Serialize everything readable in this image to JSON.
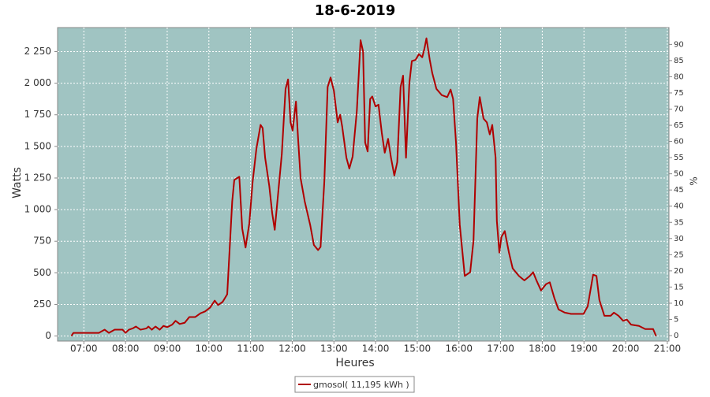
{
  "chart_data": {
    "type": "line",
    "title": "18-6-2019",
    "x_label": "Heures",
    "y_label": "Watts",
    "y2_label": "%",
    "xlim": [
      6.37,
      21.04
    ],
    "xticks": [
      {
        "value": 7,
        "label": "07:00"
      },
      {
        "value": 8,
        "label": "08:00"
      },
      {
        "value": 9,
        "label": "09:00"
      },
      {
        "value": 10,
        "label": "10:00"
      },
      {
        "value": 11,
        "label": "11:00"
      },
      {
        "value": 12,
        "label": "12:00"
      },
      {
        "value": 13,
        "label": "13:00"
      },
      {
        "value": 14,
        "label": "14:00"
      },
      {
        "value": 15,
        "label": "15:00"
      },
      {
        "value": 16,
        "label": "16:00"
      },
      {
        "value": 17,
        "label": "17:00"
      },
      {
        "value": 18,
        "label": "18:00"
      },
      {
        "value": 19,
        "label": "19:00"
      },
      {
        "value": 20,
        "label": "20:00"
      },
      {
        "value": 21,
        "label": "21:00"
      }
    ],
    "ylim": [
      -40,
      2440
    ],
    "yticks": [
      0,
      250,
      500,
      750,
      {
        "value": 1000,
        "label": "1 000"
      },
      {
        "value": 1250,
        "label": "1 250"
      },
      {
        "value": 1500,
        "label": "1 500"
      },
      {
        "value": 1750,
        "label": "1 750"
      },
      {
        "value": 2000,
        "label": "2 000"
      },
      {
        "value": 2250,
        "label": "2 250"
      }
    ],
    "y2lim": [
      -1.7,
      95.2
    ],
    "y2ticks": [
      0,
      5,
      10,
      15,
      20,
      25,
      30,
      35,
      40,
      45,
      50,
      55,
      60,
      65,
      70,
      75,
      80,
      85,
      90
    ],
    "grid": true,
    "background": "#a0c4c2",
    "x": [
      6.7,
      6.75,
      7.36,
      7.5,
      7.6,
      7.74,
      7.93,
      8.0,
      8.08,
      8.17,
      8.25,
      8.36,
      8.5,
      8.55,
      8.63,
      8.72,
      8.82,
      8.91,
      9.0,
      9.12,
      9.2,
      9.3,
      9.42,
      9.53,
      9.67,
      9.8,
      9.91,
      10.03,
      10.14,
      10.22,
      10.33,
      10.44,
      10.56,
      10.61,
      10.73,
      10.8,
      10.88,
      10.97,
      11.05,
      11.14,
      11.24,
      11.29,
      11.35,
      11.45,
      11.52,
      11.58,
      11.65,
      11.75,
      11.84,
      11.9,
      11.96,
      12.01,
      12.09,
      12.14,
      12.2,
      12.3,
      12.43,
      12.52,
      12.62,
      12.68,
      12.77,
      12.85,
      12.92,
      13.0,
      13.09,
      13.15,
      13.2,
      13.3,
      13.37,
      13.45,
      13.55,
      13.64,
      13.7,
      13.75,
      13.81,
      13.87,
      13.92,
      14.0,
      14.07,
      14.15,
      14.22,
      14.3,
      14.37,
      14.45,
      14.52,
      14.6,
      14.66,
      14.73,
      14.81,
      14.87,
      14.96,
      15.04,
      15.12,
      15.17,
      15.22,
      15.3,
      15.36,
      15.46,
      15.59,
      15.72,
      15.8,
      15.86,
      15.93,
      16.02,
      16.14,
      16.27,
      16.35,
      16.44,
      16.5,
      16.59,
      16.67,
      16.74,
      16.8,
      16.88,
      16.91,
      16.97,
      17.02,
      17.1,
      17.2,
      17.29,
      17.44,
      17.57,
      17.7,
      17.78,
      17.86,
      17.97,
      18.09,
      18.18,
      18.29,
      18.39,
      18.54,
      18.69,
      18.99,
      19.09,
      19.22,
      19.3,
      19.37,
      19.49,
      19.64,
      19.72,
      19.83,
      19.94,
      20.03,
      20.13,
      20.32,
      20.47,
      20.66,
      20.73
    ],
    "series": [
      {
        "name": "gmosol( 11,195 kWh )",
        "color": "#b00000",
        "values": [
          0,
          25,
          25,
          50,
          25,
          50,
          50,
          25,
          50,
          60,
          75,
          50,
          60,
          75,
          50,
          75,
          50,
          80,
          70,
          90,
          120,
          95,
          105,
          150,
          150,
          180,
          195,
          225,
          280,
          245,
          270,
          330,
          1065,
          1235,
          1260,
          850,
          700,
          890,
          1220,
          1480,
          1670,
          1645,
          1410,
          1185,
          970,
          840,
          1085,
          1440,
          1955,
          2030,
          1690,
          1625,
          1855,
          1565,
          1250,
          1065,
          880,
          720,
          680,
          705,
          1220,
          1970,
          2045,
          1940,
          1690,
          1750,
          1655,
          1410,
          1325,
          1420,
          1780,
          2340,
          2250,
          1530,
          1460,
          1875,
          1895,
          1815,
          1830,
          1605,
          1450,
          1560,
          1410,
          1270,
          1375,
          1970,
          2060,
          1410,
          2000,
          2175,
          2185,
          2230,
          2205,
          2270,
          2355,
          2185,
          2080,
          1955,
          1905,
          1890,
          1950,
          1875,
          1530,
          880,
          475,
          505,
          755,
          1720,
          1890,
          1720,
          1690,
          1595,
          1670,
          1410,
          910,
          660,
          785,
          830,
          660,
          535,
          475,
          440,
          475,
          505,
          440,
          360,
          410,
          425,
          300,
          210,
          185,
          175,
          175,
          235,
          485,
          475,
          285,
          160,
          160,
          185,
          160,
          120,
          130,
          90,
          80,
          55,
          55,
          0
        ]
      }
    ]
  }
}
